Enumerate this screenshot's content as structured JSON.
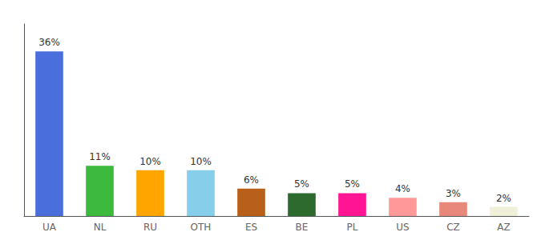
{
  "chart_data": {
    "type": "bar",
    "categories": [
      "UA",
      "NL",
      "RU",
      "OTH",
      "ES",
      "BE",
      "PL",
      "US",
      "CZ",
      "AZ"
    ],
    "values": [
      36,
      11,
      10,
      10,
      6,
      5,
      5,
      4,
      3,
      2
    ],
    "value_labels": [
      "36%",
      "11%",
      "10%",
      "10%",
      "6%",
      "5%",
      "5%",
      "4%",
      "3%",
      "2%"
    ],
    "colors": [
      "#4a6fdc",
      "#3dba3d",
      "#ffa500",
      "#87ceeb",
      "#b8601a",
      "#2d6a2d",
      "#ff1493",
      "#ff9999",
      "#e8887a",
      "#f0f0d8"
    ],
    "ylim": [
      0,
      42
    ],
    "data_labels": true,
    "tick_labels": "x",
    "grid": false
  }
}
